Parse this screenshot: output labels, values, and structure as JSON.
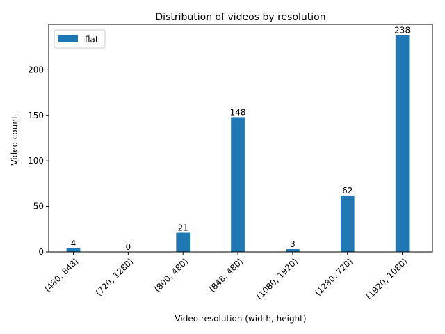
{
  "chart_data": {
    "type": "bar",
    "title": "Distribution of videos by resolution",
    "xlabel": "Video resolution (width, height)",
    "ylabel": "Video count",
    "categories": [
      "(480, 848)",
      "(720, 1280)",
      "(800, 480)",
      "(848, 480)",
      "(1080, 1920)",
      "(1280, 720)",
      "(1920, 1080)"
    ],
    "series": [
      {
        "name": "flat",
        "values": [
          4,
          0,
          21,
          148,
          3,
          62,
          238
        ],
        "color": "#1f77b4"
      }
    ],
    "ylim": [
      0,
      250
    ],
    "yticks": [
      0,
      50,
      100,
      150,
      200
    ],
    "legend": "top-left",
    "grid": false
  }
}
